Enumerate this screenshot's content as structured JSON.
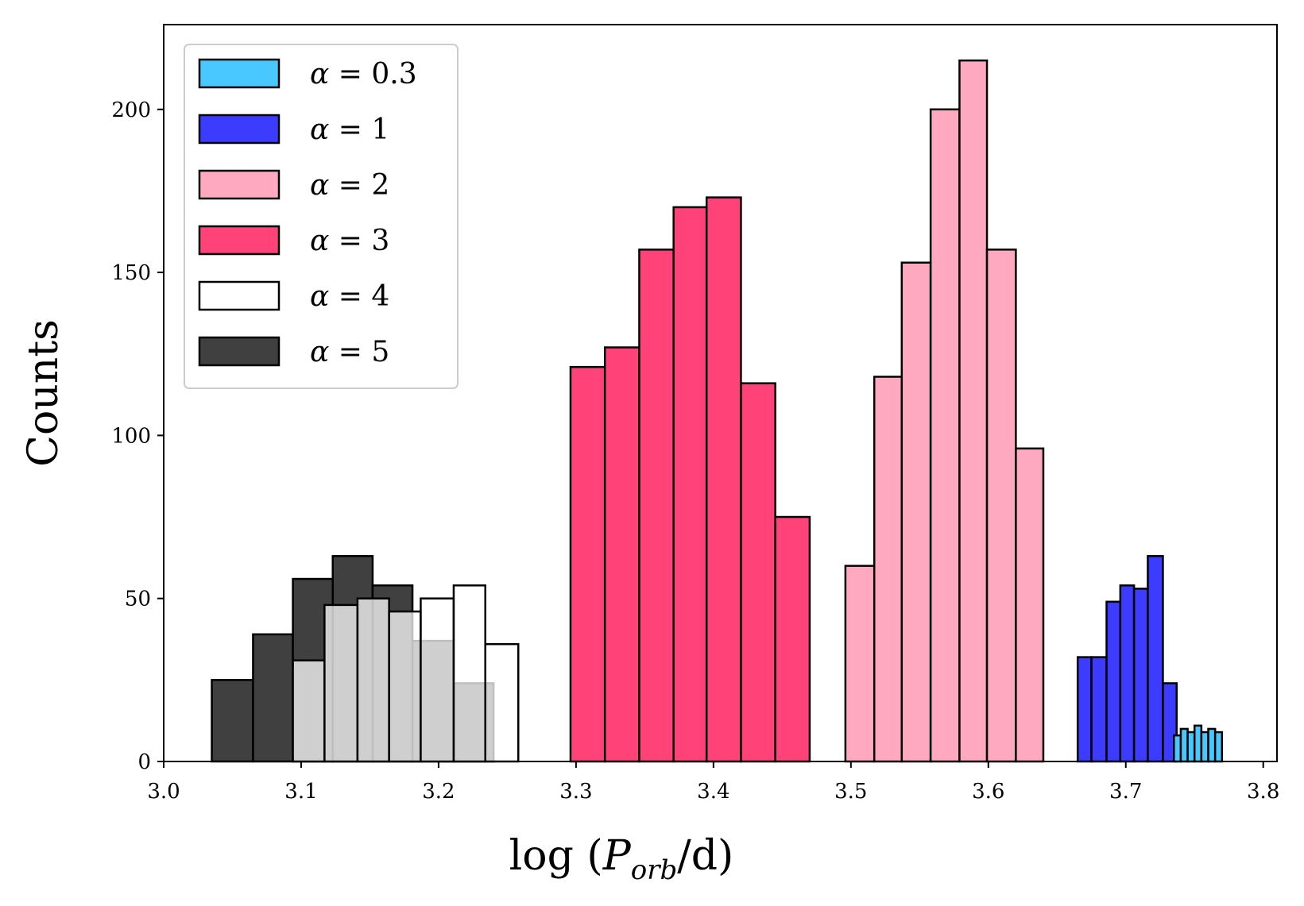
{
  "chart_data": {
    "type": "bar",
    "title": "",
    "xlabel": "log (P_orb/d)",
    "xlabel_parts": {
      "prefix": "log (",
      "var": "P",
      "sub": "orb",
      "suffix": "/d)"
    },
    "ylabel": "Counts",
    "xlim": [
      3.0,
      3.81
    ],
    "ylim": [
      0,
      226
    ],
    "xticks": [
      3.0,
      3.1,
      3.2,
      3.3,
      3.4,
      3.5,
      3.6,
      3.7,
      3.8
    ],
    "xtick_labels": [
      "3.0",
      "3.1",
      "3.2",
      "3.3",
      "3.4",
      "3.5",
      "3.6",
      "3.7",
      "3.8"
    ],
    "yticks": [
      0,
      50,
      100,
      150,
      200
    ],
    "ytick_labels": [
      "0",
      "50",
      "100",
      "150",
      "200"
    ],
    "legend_position": "top-left",
    "series": [
      {
        "name": "α = 5",
        "label_symbol": "α",
        "label_rest": " = 5",
        "color": "#404040",
        "opacity": 1,
        "edge": true,
        "bins": [
          3.035,
          3.065,
          3.094,
          3.123,
          3.152,
          3.181,
          3.211,
          3.24
        ],
        "values": [
          25,
          39,
          56,
          63,
          54,
          37,
          24
        ]
      },
      {
        "name": "α = 4",
        "label_symbol": "α",
        "label_rest": " = 4",
        "color": "#ffffff",
        "opacity": 0.75,
        "edge": true,
        "bins": [
          3.094,
          3.117,
          3.141,
          3.164,
          3.187,
          3.211,
          3.234,
          3.258
        ],
        "values": [
          31,
          48,
          50,
          46,
          50,
          54,
          36
        ]
      },
      {
        "name": "α = 3",
        "label_symbol": "α",
        "label_rest": " = 3",
        "color": "#ff4379",
        "opacity": 1,
        "edge": true,
        "bins": [
          3.296,
          3.321,
          3.346,
          3.371,
          3.395,
          3.42,
          3.445,
          3.47
        ],
        "values": [
          121,
          127,
          157,
          170,
          173,
          116,
          75
        ]
      },
      {
        "name": "α = 2",
        "label_symbol": "α",
        "label_rest": " = 2",
        "color": "#ffa9c1",
        "opacity": 1,
        "edge": true,
        "bins": [
          3.496,
          3.517,
          3.537,
          3.558,
          3.579,
          3.599,
          3.62,
          3.64
        ],
        "values": [
          60,
          118,
          153,
          200,
          215,
          157,
          96
        ]
      },
      {
        "name": "α = 1",
        "label_symbol": "α",
        "label_rest": " = 1",
        "color": "#3c3cff",
        "opacity": 1,
        "edge": true,
        "bins": [
          3.665,
          3.675,
          3.686,
          3.696,
          3.706,
          3.716,
          3.727,
          3.737
        ],
        "values": [
          32,
          32,
          49,
          54,
          53,
          63,
          24
        ]
      },
      {
        "name": "α = 0.3",
        "label_symbol": "α",
        "label_rest": " = 0.3",
        "color": "#48c8ff",
        "opacity": 1,
        "edge": true,
        "bins": [
          3.735,
          3.74,
          3.745,
          3.75,
          3.755,
          3.76,
          3.765,
          3.77
        ],
        "values": [
          8,
          10,
          9,
          11,
          9,
          10,
          9
        ]
      }
    ],
    "legend_order": [
      "α = 0.3",
      "α = 1",
      "α = 2",
      "α = 3",
      "α = 4",
      "α = 5"
    ]
  }
}
